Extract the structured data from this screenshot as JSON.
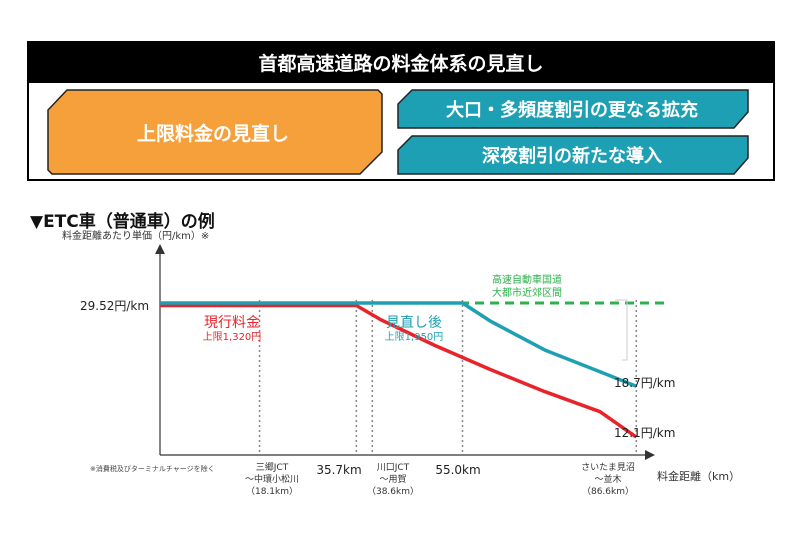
{
  "header": {
    "banner_title": "首都高速道路の料金体系の見直し",
    "box_cap": "上限料金の見直し",
    "box_bulk": "大口・多頻度割引の更なる拡充",
    "box_night": "深夜割引の新たな導入",
    "colors": {
      "orange": "#f5a03a",
      "teal": "#1ea0b4",
      "banner": "#000000"
    }
  },
  "section_heading": "▼ETC車（普通車）の例",
  "chart_data": {
    "type": "line",
    "ylabel": "料金距離あたり単価（円/km）※",
    "xlabel": "料金距離（km）",
    "footnote": "※消費税及びターミナルチャージを除く",
    "xlim": [
      0,
      100
    ],
    "ylim": [
      10,
      35
    ],
    "y_tick": "29.52円/km",
    "series": [
      {
        "name": "現行料金",
        "sublabel": "上限1,320円",
        "color": "#e8232a",
        "cap": 1320,
        "end_label": "12.1円/km",
        "x": [
          0,
          35.7,
          40,
          50,
          60,
          70,
          80,
          86.6
        ],
        "y": [
          29.2,
          29.2,
          27.4,
          24.0,
          20.9,
          18.0,
          15.4,
          12.1
        ]
      },
      {
        "name": "見直し後",
        "sublabel": "上限1,950円",
        "color": "#1ea0b4",
        "cap": 1950,
        "end_label": "18.7円/km",
        "x": [
          0,
          55.0,
          60,
          70,
          80,
          86.6
        ],
        "y": [
          29.52,
          29.52,
          27.2,
          23.4,
          20.6,
          18.7
        ]
      },
      {
        "name": "高速自動車国道 大都市近郊区間",
        "color": "#2bb24c",
        "dashed": true,
        "x": [
          0,
          92
        ],
        "y": [
          29.52,
          29.52
        ]
      }
    ],
    "reference_lines": [
      {
        "x": 18.1,
        "label": "三郷JCT ～中環小松川 （18.1km）"
      },
      {
        "x": 35.7,
        "label": "35.7km"
      },
      {
        "x": 38.6,
        "label": "川口JCT ～用賀 （38.6km）"
      },
      {
        "x": 55.0,
        "label": "55.0km"
      },
      {
        "x": 86.6,
        "label": "さいたま見沼 ～並木 （86.6km）"
      }
    ],
    "xtick_labels": {
      "x1_line1": "三郷JCT",
      "x1_line2": "～中環小松川",
      "x1_line3": "（18.1km）",
      "x2": "35.7km",
      "x3_line1": "川口JCT",
      "x3_line2": "～用賀",
      "x3_line3": "（38.6km）",
      "x4": "55.0km",
      "x5_line1": "さいたま見沼",
      "x5_line2": "～並木",
      "x5_line3": "（86.6km）"
    },
    "green_label_1": "高速自動車国道",
    "green_label_2": "大都市近郊区間"
  }
}
